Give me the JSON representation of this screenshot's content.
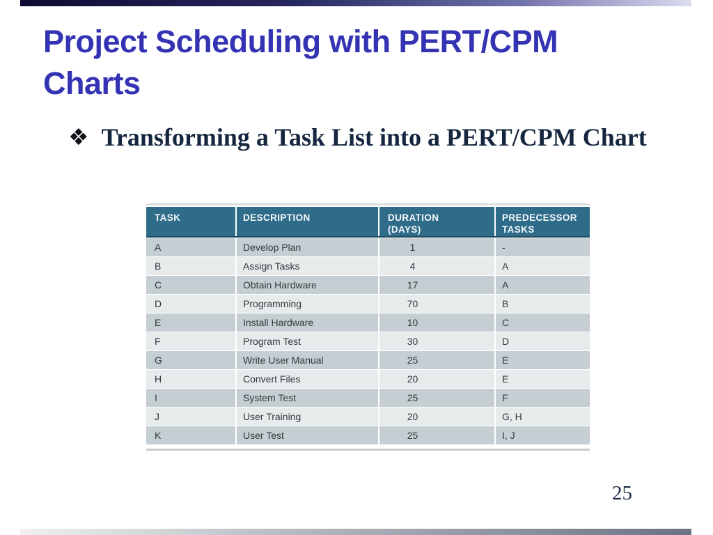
{
  "title": {
    "text": "Project Scheduling with PERT/CPM Charts"
  },
  "bullet": {
    "icon": "❖",
    "text": "Transforming a Task List into a PERT/CPM Chart"
  },
  "page_number": "25",
  "colors": {
    "title_blue": "#3333b4",
    "bullet_navy": "#15263f",
    "table_header_teal": "#2f6c8a",
    "table_row_dark": "#c4ced3",
    "table_row_light": "#e7ebec",
    "top_bar_gradient_start": "#0c0c34",
    "top_bar_gradient_end": "#dcdcf0",
    "bottom_bar_gradient_start": "#f0f0f0",
    "bottom_bar_gradient_end": "#6b7283"
  },
  "table": {
    "headers": [
      "TASK",
      "DESCRIPTION",
      "DURATION\n(DAYS)",
      "PREDECESSOR\nTASKS"
    ],
    "rows": [
      {
        "task": "A",
        "description": "Develop Plan",
        "duration": "1",
        "predecessors": "-"
      },
      {
        "task": "B",
        "description": "Assign Tasks",
        "duration": "4",
        "predecessors": "A"
      },
      {
        "task": "C",
        "description": "Obtain Hardware",
        "duration": "17",
        "predecessors": "A"
      },
      {
        "task": "D",
        "description": "Programming",
        "duration": "70",
        "predecessors": "B"
      },
      {
        "task": "E",
        "description": "Install Hardware",
        "duration": "10",
        "predecessors": "C"
      },
      {
        "task": "F",
        "description": "Program Test",
        "duration": "30",
        "predecessors": "D"
      },
      {
        "task": "G",
        "description": "Write User Manual",
        "duration": "25",
        "predecessors": "E"
      },
      {
        "task": "H",
        "description": "Convert Files",
        "duration": "20",
        "predecessors": "E"
      },
      {
        "task": "I",
        "description": "System Test",
        "duration": "25",
        "predecessors": "F"
      },
      {
        "task": "J",
        "description": "User Training",
        "duration": "20",
        "predecessors": "G, H"
      },
      {
        "task": "K",
        "description": "User Test",
        "duration": "25",
        "predecessors": "I, J"
      }
    ]
  }
}
